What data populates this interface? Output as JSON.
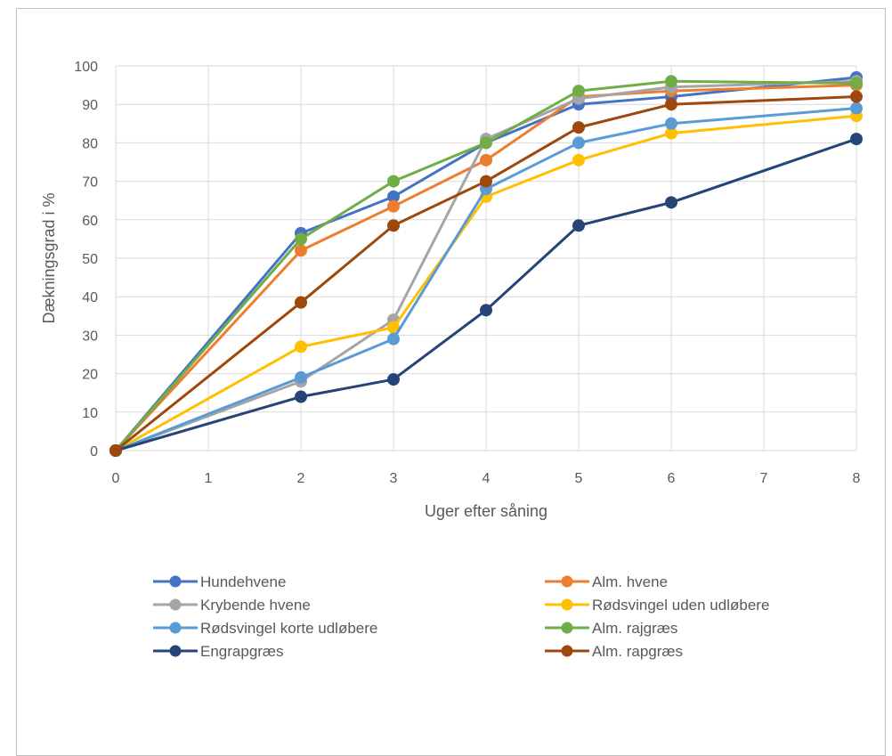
{
  "chart_data": {
    "type": "line",
    "title": "",
    "xlabel": "Uger efter såning",
    "ylabel": "Dækningsgrad i %",
    "categories": [
      "0",
      "1",
      "2",
      "3",
      "4",
      "5",
      "6",
      "7",
      "8"
    ],
    "yticks": [
      "0",
      "10",
      "20",
      "30",
      "40",
      "50",
      "60",
      "70",
      "80",
      "90",
      "100"
    ],
    "ylim": [
      0,
      100
    ],
    "grid": true,
    "legend_position": "bottom",
    "series": [
      {
        "name": "Hundehvene",
        "color": "#4472c4",
        "points": [
          [
            0,
            0
          ],
          [
            2,
            56.5
          ],
          [
            3,
            66
          ],
          [
            4,
            80
          ],
          [
            5,
            90
          ],
          [
            6,
            92
          ],
          [
            8,
            97
          ]
        ]
      },
      {
        "name": "Alm. hvene",
        "color": "#ed7d31",
        "points": [
          [
            0,
            0
          ],
          [
            2,
            52
          ],
          [
            3,
            63.5
          ],
          [
            4,
            75.5
          ],
          [
            5,
            92
          ],
          [
            6,
            93.5
          ],
          [
            8,
            95
          ]
        ]
      },
      {
        "name": "Krybende hvene",
        "color": "#a5a5a5",
        "points": [
          [
            0,
            0
          ],
          [
            2,
            18
          ],
          [
            3,
            34
          ],
          [
            4,
            81
          ],
          [
            5,
            91.5
          ],
          [
            6,
            94.5
          ],
          [
            8,
            96
          ]
        ]
      },
      {
        "name": "Rødsvingel uden udløbere",
        "color": "#ffc000",
        "points": [
          [
            0,
            0
          ],
          [
            2,
            27
          ],
          [
            3,
            32
          ],
          [
            4,
            66
          ],
          [
            5,
            75.5
          ],
          [
            6,
            82.5
          ],
          [
            8,
            87
          ]
        ]
      },
      {
        "name": "Rødsvingel korte udløbere",
        "color": "#5b9bd5",
        "points": [
          [
            0,
            0
          ],
          [
            2,
            19
          ],
          [
            3,
            29
          ],
          [
            4,
            68
          ],
          [
            5,
            80
          ],
          [
            6,
            85
          ],
          [
            8,
            89
          ]
        ]
      },
      {
        "name": "Alm. rajgræs",
        "color": "#70ad47",
        "points": [
          [
            0,
            0
          ],
          [
            2,
            55
          ],
          [
            3,
            70
          ],
          [
            4,
            80
          ],
          [
            5,
            93.5
          ],
          [
            6,
            96
          ],
          [
            8,
            95.5
          ]
        ]
      },
      {
        "name": "Engrapgræs",
        "color": "#264478",
        "points": [
          [
            0,
            0
          ],
          [
            2,
            14
          ],
          [
            3,
            18.5
          ],
          [
            4,
            36.5
          ],
          [
            5,
            58.5
          ],
          [
            6,
            64.5
          ],
          [
            8,
            81
          ]
        ]
      },
      {
        "name": "Alm. rapgræs",
        "color": "#9e480e",
        "points": [
          [
            0,
            0
          ],
          [
            2,
            38.5
          ],
          [
            3,
            58.5
          ],
          [
            4,
            70
          ],
          [
            5,
            84
          ],
          [
            6,
            90
          ],
          [
            8,
            92
          ]
        ]
      }
    ]
  }
}
